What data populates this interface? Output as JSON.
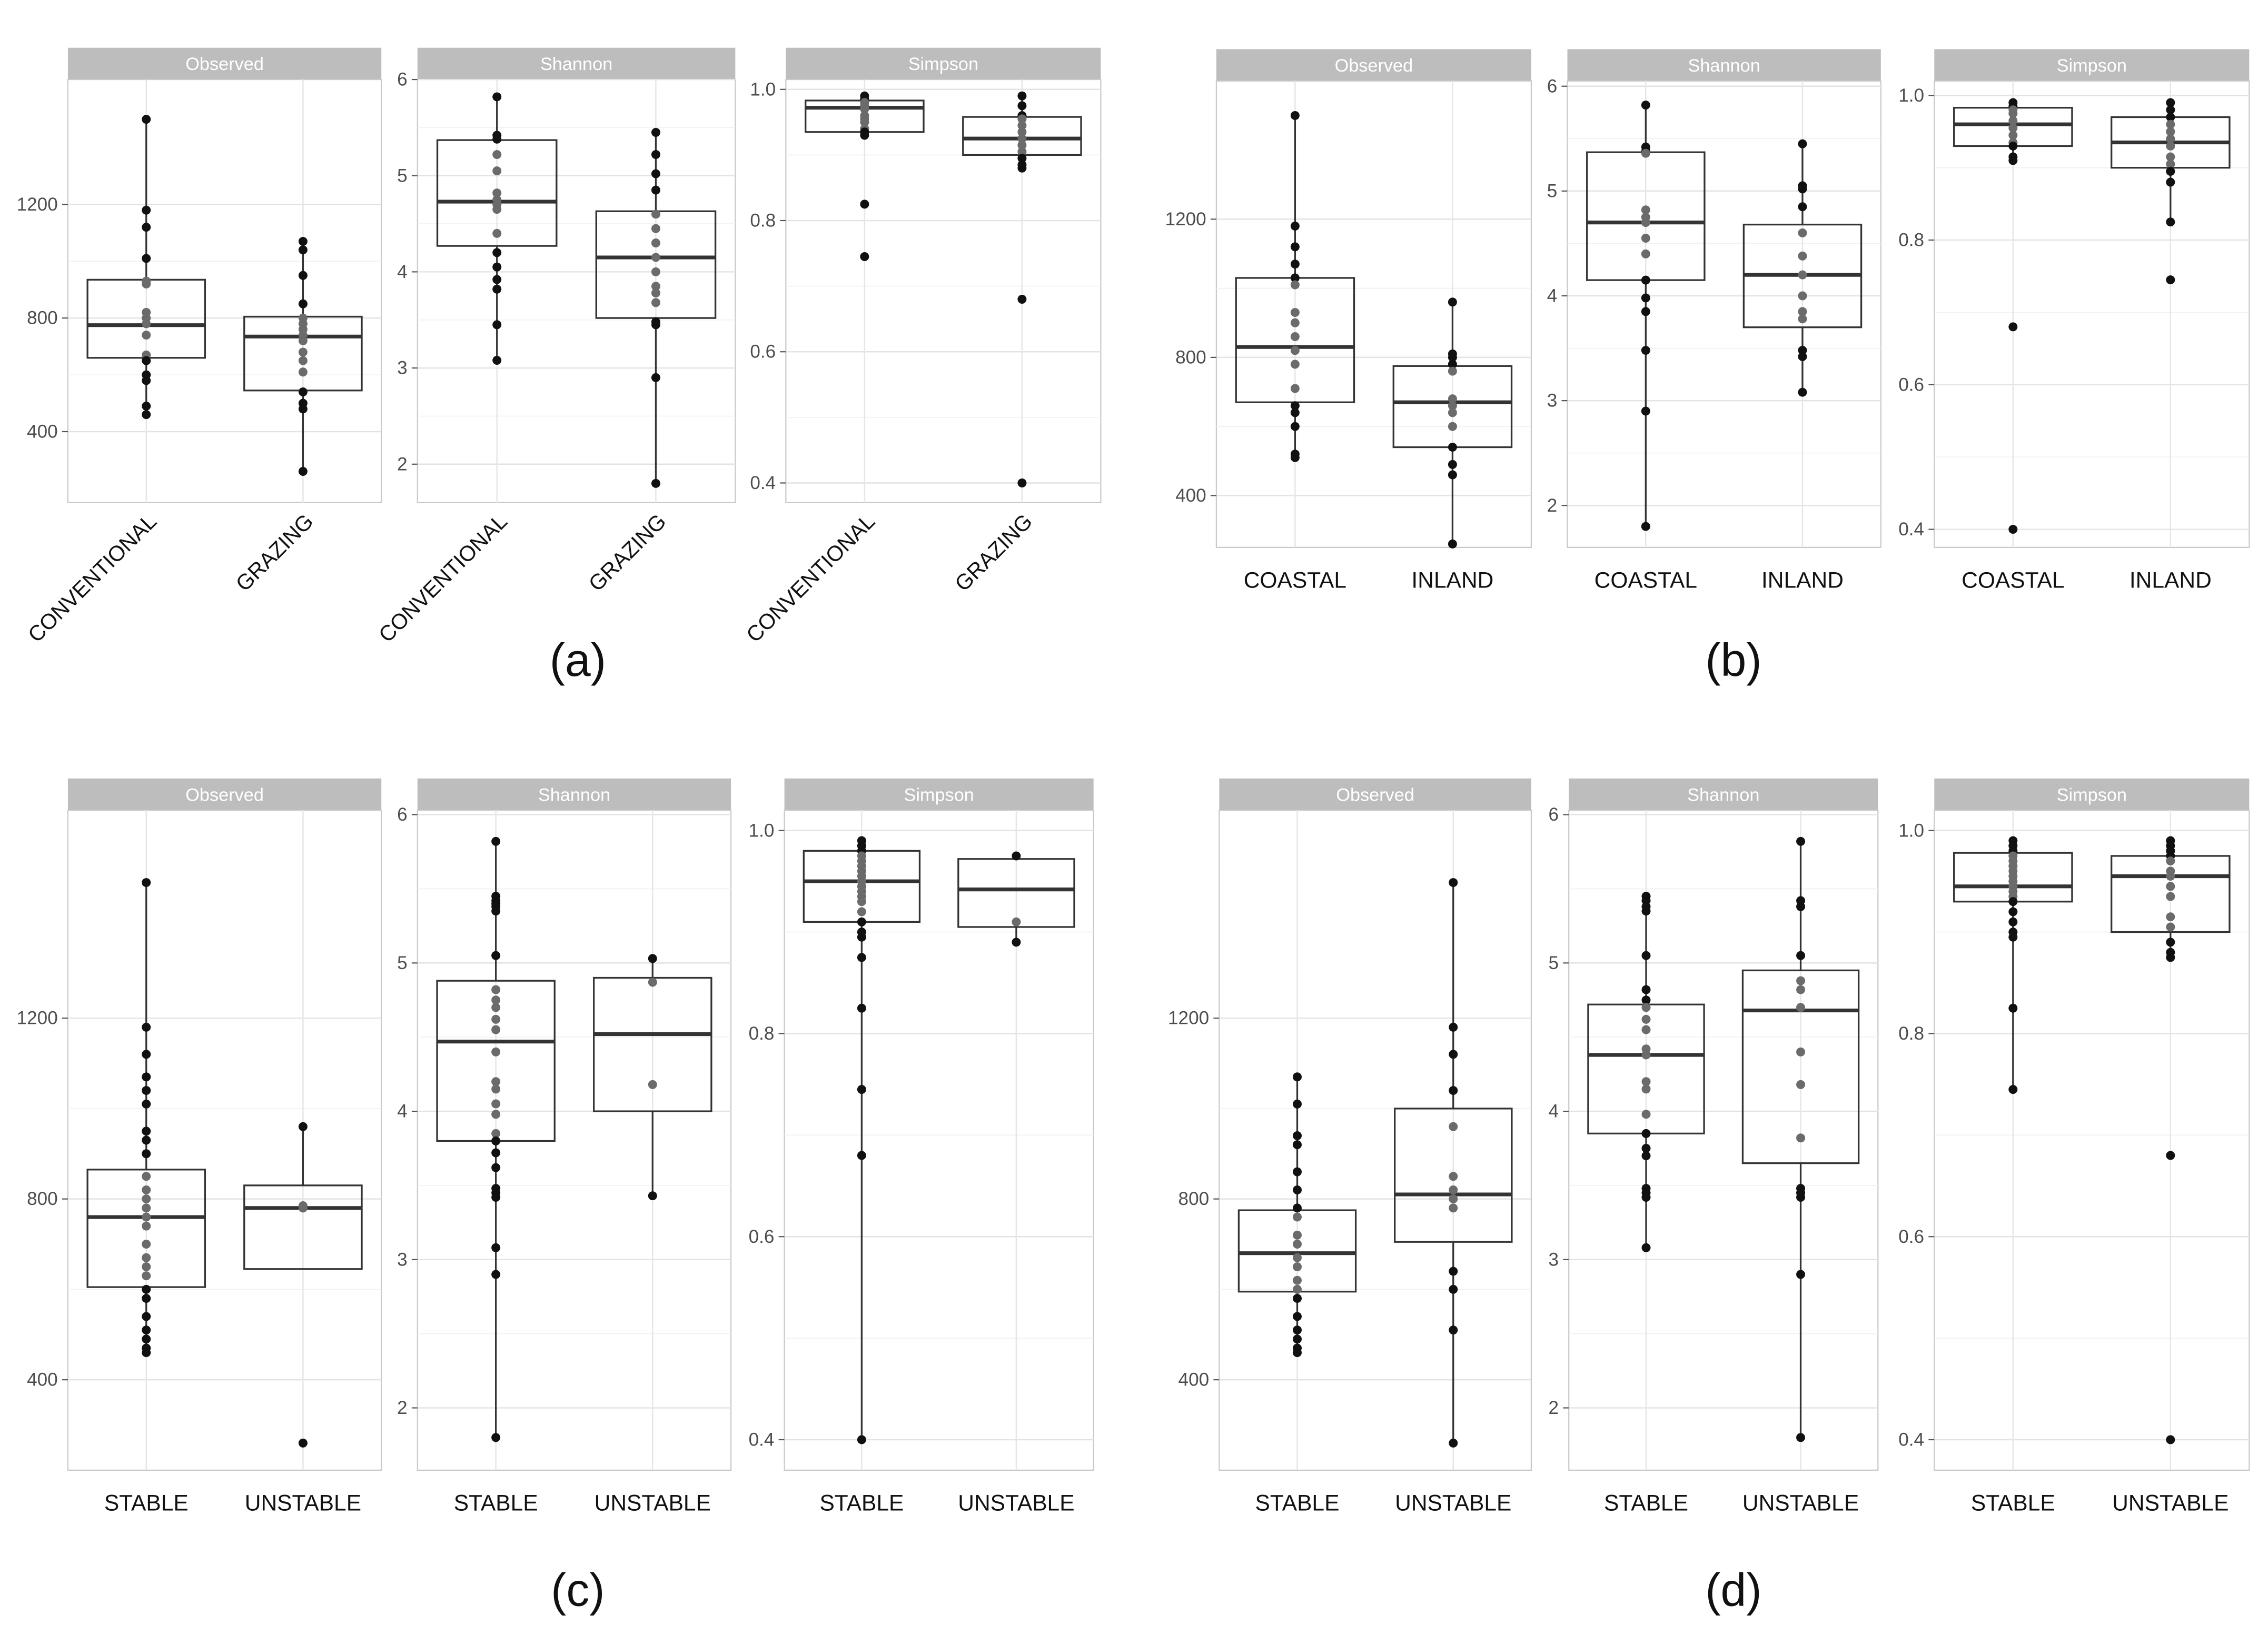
{
  "figure": {
    "panels": [
      {
        "label": "(a)"
      },
      {
        "label": "(b)"
      },
      {
        "label": "(c)"
      },
      {
        "label": "(d)"
      }
    ]
  },
  "chart_data": [
    {
      "panel": "(a)",
      "type": "box",
      "facet": "Observed",
      "x_label_rotated": true,
      "categories": [
        "CONVENTIONAL",
        "GRAZING"
      ],
      "ylim": [
        150,
        1640
      ],
      "yticks": [
        400,
        800,
        1200
      ],
      "boxes": [
        {
          "category": "CONVENTIONAL",
          "lower_whisker": 460,
          "q1": 660,
          "median": 775,
          "q3": 935,
          "upper_whisker": 1500,
          "points": [
            1500,
            1180,
            1120,
            1010,
            930,
            920,
            820,
            800,
            780,
            740,
            670,
            650,
            600,
            580,
            490,
            460
          ]
        },
        {
          "category": "GRAZING",
          "lower_whisker": 260,
          "q1": 545,
          "median": 735,
          "q3": 805,
          "upper_whisker": 1070,
          "points": [
            1070,
            1040,
            950,
            850,
            800,
            780,
            760,
            740,
            720,
            680,
            650,
            610,
            540,
            500,
            480,
            260
          ]
        }
      ]
    },
    {
      "panel": "(a)",
      "type": "box",
      "facet": "Shannon",
      "x_label_rotated": true,
      "categories": [
        "CONVENTIONAL",
        "GRAZING"
      ],
      "ylim": [
        1.6,
        6.0
      ],
      "yticks": [
        2,
        3,
        4,
        5,
        6
      ],
      "boxes": [
        {
          "category": "CONVENTIONAL",
          "lower_whisker": 3.08,
          "q1": 4.27,
          "median": 4.73,
          "q3": 5.37,
          "upper_whisker": 5.82,
          "points": [
            5.82,
            5.42,
            5.38,
            5.22,
            5.05,
            4.82,
            4.75,
            4.7,
            4.65,
            4.4,
            4.2,
            4.05,
            3.92,
            3.82,
            3.45,
            3.08
          ]
        },
        {
          "category": "GRAZING",
          "lower_whisker": 1.8,
          "q1": 3.52,
          "median": 4.15,
          "q3": 4.63,
          "upper_whisker": 5.45,
          "points": [
            5.45,
            5.22,
            5.02,
            4.85,
            4.6,
            4.45,
            4.3,
            4.15,
            4.0,
            3.85,
            3.78,
            3.68,
            3.48,
            3.45,
            2.9,
            1.8
          ]
        }
      ]
    },
    {
      "panel": "(a)",
      "type": "box",
      "facet": "Simpson",
      "x_label_rotated": true,
      "categories": [
        "CONVENTIONAL",
        "GRAZING"
      ],
      "ylim": [
        0.37,
        1.015
      ],
      "yticks": [
        0.4,
        0.6,
        0.8,
        1.0
      ],
      "ytick_labels": [
        "0.4",
        "0.6",
        "0.8",
        "1.0"
      ],
      "boxes": [
        {
          "category": "CONVENTIONAL",
          "lower_whisker": 0.935,
          "q1": 0.935,
          "median": 0.972,
          "q3": 0.983,
          "upper_whisker": 0.99,
          "points": [
            0.99,
            0.985,
            0.98,
            0.975,
            0.97,
            0.96,
            0.955,
            0.95,
            0.94,
            0.935,
            0.93,
            0.825,
            0.745
          ]
        },
        {
          "category": "GRAZING",
          "lower_whisker": 0.88,
          "q1": 0.9,
          "median": 0.925,
          "q3": 0.958,
          "upper_whisker": 0.99,
          "points": [
            0.99,
            0.975,
            0.96,
            0.955,
            0.945,
            0.935,
            0.925,
            0.915,
            0.905,
            0.895,
            0.885,
            0.88,
            0.68,
            0.4
          ]
        }
      ]
    },
    {
      "panel": "(b)",
      "type": "box",
      "facet": "Observed",
      "x_label_rotated": false,
      "categories": [
        "COASTAL",
        "INLAND"
      ],
      "ylim": [
        250,
        1600
      ],
      "yticks": [
        400,
        800,
        1200
      ],
      "boxes": [
        {
          "category": "COASTAL",
          "lower_whisker": 510,
          "q1": 670,
          "median": 830,
          "q3": 1030,
          "upper_whisker": 1500,
          "points": [
            1500,
            1180,
            1120,
            1070,
            1030,
            1010,
            930,
            900,
            860,
            820,
            780,
            710,
            660,
            640,
            600,
            520,
            510
          ]
        },
        {
          "category": "INLAND",
          "lower_whisker": 260,
          "q1": 540,
          "median": 670,
          "q3": 775,
          "upper_whisker": 960,
          "points": [
            960,
            810,
            800,
            780,
            760,
            680,
            660,
            640,
            600,
            540,
            490,
            460,
            260
          ]
        }
      ]
    },
    {
      "panel": "(b)",
      "type": "box",
      "facet": "Shannon",
      "x_label_rotated": false,
      "categories": [
        "COASTAL",
        "INLAND"
      ],
      "ylim": [
        1.6,
        6.05
      ],
      "yticks": [
        2,
        3,
        4,
        5,
        6
      ],
      "boxes": [
        {
          "category": "COASTAL",
          "lower_whisker": 1.8,
          "q1": 4.15,
          "median": 4.7,
          "q3": 5.37,
          "upper_whisker": 5.82,
          "points": [
            5.82,
            5.42,
            5.38,
            5.36,
            4.82,
            4.75,
            4.7,
            4.55,
            4.4,
            4.15,
            3.98,
            3.85,
            3.48,
            2.9,
            1.8
          ]
        },
        {
          "category": "INLAND",
          "lower_whisker": 3.08,
          "q1": 3.7,
          "median": 4.2,
          "q3": 4.68,
          "upper_whisker": 5.45,
          "points": [
            5.45,
            5.05,
            5.02,
            4.85,
            4.6,
            4.38,
            4.2,
            4.0,
            3.85,
            3.78,
            3.48,
            3.42,
            3.08
          ]
        }
      ]
    },
    {
      "panel": "(b)",
      "type": "box",
      "facet": "Simpson",
      "x_label_rotated": false,
      "categories": [
        "COASTAL",
        "INLAND"
      ],
      "ylim": [
        0.375,
        1.02
      ],
      "yticks": [
        0.4,
        0.6,
        0.8,
        1.0
      ],
      "ytick_labels": [
        "0.4",
        "0.6",
        "0.8",
        "1.0"
      ],
      "boxes": [
        {
          "category": "COASTAL",
          "lower_whisker": 0.91,
          "q1": 0.93,
          "median": 0.96,
          "q3": 0.983,
          "upper_whisker": 0.99,
          "points": [
            0.99,
            0.985,
            0.98,
            0.975,
            0.965,
            0.955,
            0.945,
            0.935,
            0.93,
            0.915,
            0.91,
            0.68,
            0.4
          ]
        },
        {
          "category": "INLAND",
          "lower_whisker": 0.825,
          "q1": 0.9,
          "median": 0.935,
          "q3": 0.97,
          "upper_whisker": 0.99,
          "points": [
            0.99,
            0.98,
            0.97,
            0.96,
            0.95,
            0.94,
            0.93,
            0.915,
            0.905,
            0.895,
            0.88,
            0.825,
            0.745
          ]
        }
      ]
    },
    {
      "panel": "(c)",
      "type": "box",
      "facet": "Observed",
      "x_label_rotated": false,
      "categories": [
        "STABLE",
        "UNSTABLE"
      ],
      "ylim": [
        200,
        1660
      ],
      "yticks": [
        400,
        800,
        1200
      ],
      "boxes": [
        {
          "category": "STABLE",
          "lower_whisker": 460,
          "q1": 605,
          "median": 760,
          "q3": 865,
          "upper_whisker": 1500,
          "points": [
            1500,
            1180,
            1120,
            1070,
            1040,
            1010,
            950,
            930,
            900,
            850,
            820,
            800,
            780,
            760,
            740,
            700,
            670,
            650,
            630,
            600,
            580,
            540,
            510,
            490,
            470,
            460
          ]
        },
        {
          "category": "UNSTABLE",
          "lower_whisker": 645,
          "q1": 645,
          "median": 780,
          "q3": 830,
          "upper_whisker": 960,
          "points": [
            960,
            785,
            780,
            260
          ]
        }
      ]
    },
    {
      "panel": "(c)",
      "type": "box",
      "facet": "Shannon",
      "x_label_rotated": false,
      "categories": [
        "STABLE",
        "UNSTABLE"
      ],
      "ylim": [
        1.58,
        6.03
      ],
      "yticks": [
        2,
        3,
        4,
        5,
        6
      ],
      "boxes": [
        {
          "category": "STABLE",
          "lower_whisker": 1.8,
          "q1": 3.8,
          "median": 4.47,
          "q3": 4.88,
          "upper_whisker": 5.82,
          "points": [
            5.82,
            5.45,
            5.42,
            5.4,
            5.38,
            5.35,
            5.05,
            4.82,
            4.75,
            4.7,
            4.62,
            4.55,
            4.4,
            4.2,
            4.15,
            4.05,
            3.98,
            3.85,
            3.8,
            3.72,
            3.62,
            3.48,
            3.45,
            3.42,
            3.08,
            2.9,
            1.8
          ]
        },
        {
          "category": "UNSTABLE",
          "lower_whisker": 3.43,
          "q1": 4.0,
          "median": 4.52,
          "q3": 4.9,
          "upper_whisker": 5.03,
          "points": [
            5.03,
            4.87,
            4.18,
            3.43
          ]
        }
      ]
    },
    {
      "panel": "(c)",
      "type": "box",
      "facet": "Simpson",
      "x_label_rotated": false,
      "categories": [
        "STABLE",
        "UNSTABLE"
      ],
      "ylim": [
        0.37,
        1.02
      ],
      "yticks": [
        0.4,
        0.6,
        0.8,
        1.0
      ],
      "ytick_labels": [
        "0.4",
        "0.6",
        "0.8",
        "1.0"
      ],
      "boxes": [
        {
          "category": "STABLE",
          "lower_whisker": 0.4,
          "q1": 0.91,
          "median": 0.95,
          "q3": 0.98,
          "upper_whisker": 0.99,
          "points": [
            0.99,
            0.985,
            0.98,
            0.975,
            0.97,
            0.965,
            0.96,
            0.955,
            0.95,
            0.945,
            0.94,
            0.935,
            0.93,
            0.92,
            0.91,
            0.9,
            0.895,
            0.875,
            0.825,
            0.745,
            0.68,
            0.4
          ]
        },
        {
          "category": "UNSTABLE",
          "lower_whisker": 0.89,
          "q1": 0.905,
          "median": 0.942,
          "q3": 0.972,
          "upper_whisker": 0.975,
          "points": [
            0.975,
            0.91,
            0.89
          ]
        }
      ]
    },
    {
      "panel": "(d)",
      "type": "box",
      "facet": "Observed",
      "x_label_rotated": false,
      "categories": [
        "STABLE",
        "UNSTABLE"
      ],
      "ylim": [
        200,
        1660
      ],
      "yticks": [
        400,
        800,
        1200
      ],
      "boxes": [
        {
          "category": "STABLE",
          "lower_whisker": 460,
          "q1": 595,
          "median": 680,
          "q3": 775,
          "upper_whisker": 1070,
          "points": [
            1070,
            1010,
            940,
            920,
            860,
            820,
            780,
            760,
            720,
            700,
            670,
            650,
            620,
            600,
            580,
            540,
            510,
            490,
            470,
            460
          ]
        },
        {
          "category": "UNSTABLE",
          "lower_whisker": 260,
          "q1": 705,
          "median": 810,
          "q3": 1000,
          "upper_whisker": 1500,
          "points": [
            1500,
            1180,
            1120,
            1040,
            960,
            850,
            820,
            800,
            780,
            640,
            600,
            510,
            260
          ]
        }
      ]
    },
    {
      "panel": "(d)",
      "type": "box",
      "facet": "Shannon",
      "x_label_rotated": false,
      "categories": [
        "STABLE",
        "UNSTABLE"
      ],
      "ylim": [
        1.58,
        6.03
      ],
      "yticks": [
        2,
        3,
        4,
        5,
        6
      ],
      "boxes": [
        {
          "category": "STABLE",
          "lower_whisker": 3.08,
          "q1": 3.85,
          "median": 4.38,
          "q3": 4.72,
          "upper_whisker": 5.45,
          "points": [
            5.45,
            5.42,
            5.38,
            5.35,
            5.05,
            4.82,
            4.75,
            4.7,
            4.62,
            4.55,
            4.42,
            4.38,
            4.2,
            4.15,
            3.98,
            3.85,
            3.75,
            3.7,
            3.48,
            3.45,
            3.42,
            3.08
          ]
        },
        {
          "category": "UNSTABLE",
          "lower_whisker": 1.8,
          "q1": 3.65,
          "median": 4.68,
          "q3": 4.95,
          "upper_whisker": 5.82,
          "points": [
            5.82,
            5.42,
            5.38,
            5.05,
            4.88,
            4.82,
            4.7,
            4.4,
            4.18,
            3.82,
            3.48,
            3.45,
            3.42,
            2.9,
            1.8
          ]
        }
      ]
    },
    {
      "panel": "(d)",
      "type": "box",
      "facet": "Simpson",
      "x_label_rotated": false,
      "categories": [
        "STABLE",
        "UNSTABLE"
      ],
      "ylim": [
        0.37,
        1.02
      ],
      "yticks": [
        0.4,
        0.6,
        0.8,
        1.0
      ],
      "ytick_labels": [
        "0.4",
        "0.6",
        "0.8",
        "1.0"
      ],
      "boxes": [
        {
          "category": "STABLE",
          "lower_whisker": 0.745,
          "q1": 0.93,
          "median": 0.945,
          "q3": 0.978,
          "upper_whisker": 0.99,
          "points": [
            0.99,
            0.985,
            0.98,
            0.975,
            0.97,
            0.965,
            0.96,
            0.955,
            0.95,
            0.945,
            0.94,
            0.935,
            0.93,
            0.92,
            0.91,
            0.9,
            0.895,
            0.825,
            0.745
          ]
        },
        {
          "category": "UNSTABLE",
          "lower_whisker": 0.875,
          "q1": 0.9,
          "median": 0.955,
          "q3": 0.975,
          "upper_whisker": 0.99,
          "points": [
            0.99,
            0.985,
            0.98,
            0.975,
            0.97,
            0.96,
            0.955,
            0.945,
            0.935,
            0.915,
            0.905,
            0.89,
            0.88,
            0.875,
            0.68,
            0.4
          ]
        }
      ]
    }
  ]
}
